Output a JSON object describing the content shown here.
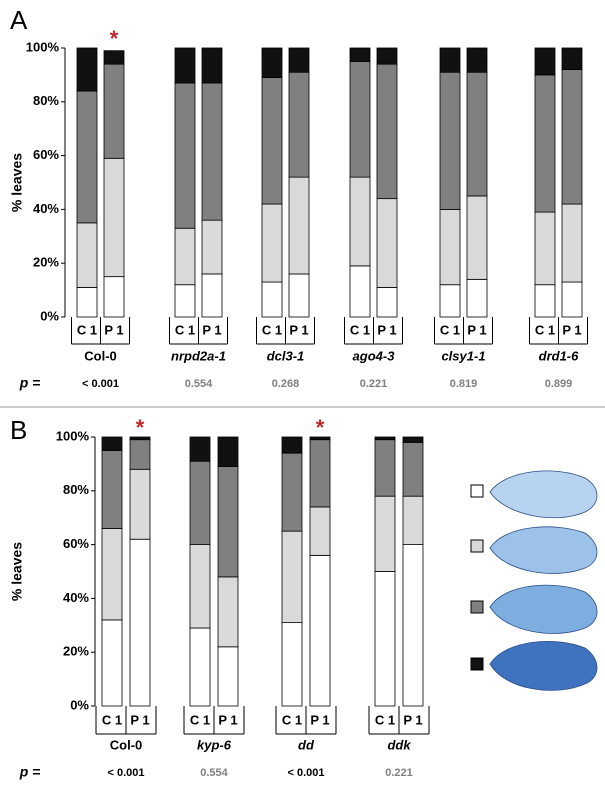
{
  "chart_data": [
    {
      "type": "stacked-bar",
      "panel": "A",
      "y_label": "% leaves",
      "ylim": [
        0,
        100
      ],
      "yticks": [
        {
          "value": 0,
          "label": "0%"
        },
        {
          "value": 20,
          "label": "20%"
        },
        {
          "value": 40,
          "label": "40%"
        },
        {
          "value": 60,
          "label": "60%"
        },
        {
          "value": 80,
          "label": "80%"
        },
        {
          "value": 100,
          "label": "100%"
        }
      ],
      "categories": [
        "C 1",
        "P 1",
        "C 1",
        "P 1",
        "C 1",
        "P 1",
        "C 1",
        "P 1",
        "C 1",
        "P 1",
        "C 1",
        "P 1"
      ],
      "groups": [
        "Col-0",
        "nrpd2a-1",
        "dcl3-1",
        "ago4-3",
        "clsy1-1",
        "drd1-6"
      ],
      "p_label": "p =",
      "p_values": [
        "< 0.001",
        "0.554",
        "0.268",
        "0.221",
        "0.819",
        "0.899"
      ],
      "p_colors": [
        "#000000",
        "#7f7f7f",
        "#7f7f7f",
        "#7f7f7f",
        "#7f7f7f",
        "#7f7f7f"
      ],
      "annotations": [
        {
          "text": "*",
          "category": 1,
          "color": "#c0272d"
        }
      ],
      "series": [
        {
          "color": "#ffffff",
          "values": [
            11,
            15,
            12,
            16,
            13,
            16,
            19,
            11,
            12,
            14,
            12,
            13
          ]
        },
        {
          "color": "#d9d9d9",
          "values": [
            24,
            44,
            21,
            20,
            29,
            36,
            33,
            33,
            28,
            31,
            27,
            29
          ]
        },
        {
          "color": "#808080",
          "values": [
            49,
            35,
            54,
            51,
            47,
            39,
            43,
            50,
            51,
            46,
            51,
            50
          ]
        },
        {
          "color": "#111111",
          "values": [
            16,
            5,
            13,
            13,
            11,
            9,
            5,
            6,
            9,
            9,
            10,
            8
          ]
        }
      ]
    },
    {
      "type": "stacked-bar",
      "panel": "B",
      "y_label": "% leaves",
      "ylim": [
        0,
        100
      ],
      "yticks": [
        {
          "value": 0,
          "label": "0%"
        },
        {
          "value": 20,
          "label": "20%"
        },
        {
          "value": 40,
          "label": "40%"
        },
        {
          "value": 60,
          "label": "60%"
        },
        {
          "value": 80,
          "label": "80%"
        },
        {
          "value": 100,
          "label": "100%"
        }
      ],
      "categories": [
        "C 1",
        "P 1",
        "C 1",
        "P 1",
        "C 1",
        "P 1",
        "C 1",
        "P 1"
      ],
      "groups": [
        "Col-0",
        "kyp-6",
        "dd",
        "ddk"
      ],
      "p_label": "p =",
      "p_values": [
        "< 0.001",
        "0.554",
        "< 0.001",
        "0.221"
      ],
      "p_colors": [
        "#000000",
        "#7f7f7f",
        "#000000",
        "#7f7f7f"
      ],
      "annotations": [
        {
          "text": "*",
          "category": 1,
          "color": "#c0272d"
        },
        {
          "text": "*",
          "category": 5,
          "color": "#c0272d"
        }
      ],
      "series": [
        {
          "color": "#ffffff",
          "values": [
            32,
            62,
            29,
            22,
            31,
            56,
            50,
            60
          ]
        },
        {
          "color": "#d9d9d9",
          "values": [
            34,
            26,
            31,
            26,
            34,
            18,
            28,
            18
          ]
        },
        {
          "color": "#808080",
          "values": [
            29,
            11,
            31,
            41,
            29,
            25,
            21,
            20
          ]
        },
        {
          "color": "#111111",
          "values": [
            5,
            1,
            9,
            11,
            6,
            1,
            1,
            2
          ]
        }
      ]
    }
  ]
}
